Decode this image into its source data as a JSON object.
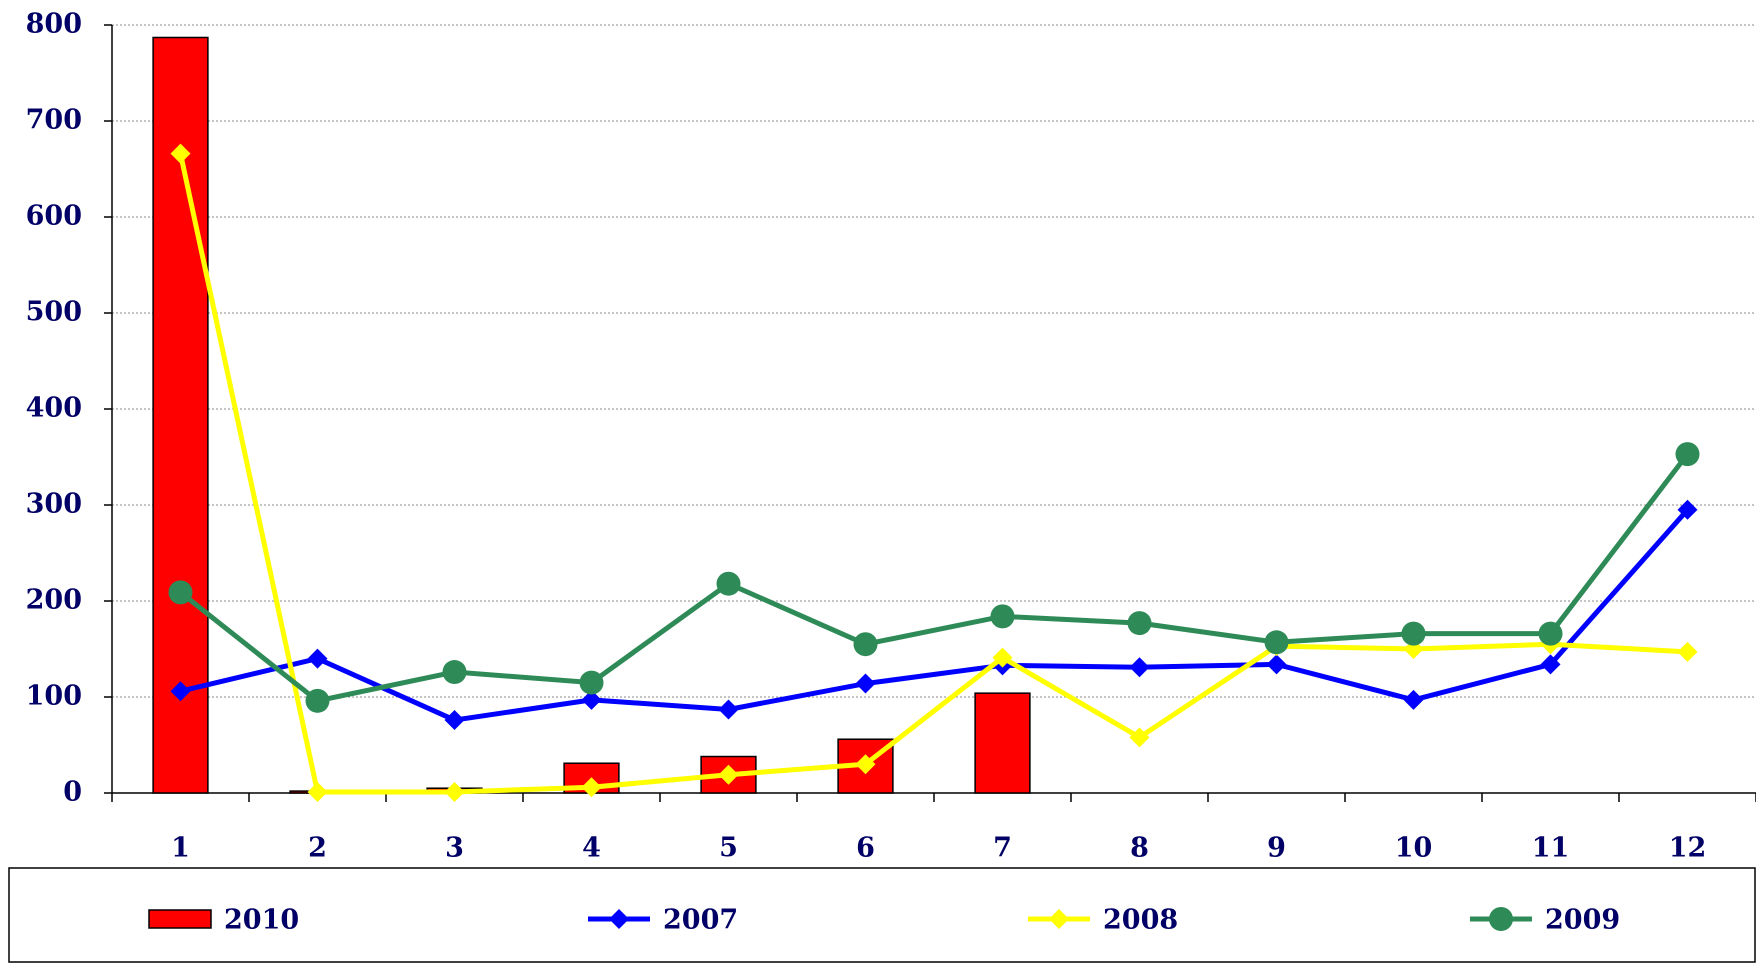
{
  "chart_data": {
    "type": "bar",
    "categories": [
      "1",
      "2",
      "3",
      "4",
      "5",
      "6",
      "7",
      "8",
      "9",
      "10",
      "11",
      "12"
    ],
    "series": [
      {
        "name": "2010",
        "type": "bar",
        "color": "#ff0000",
        "values": [
          787,
          2,
          5,
          31,
          38,
          56,
          104,
          null,
          null,
          null,
          null,
          null
        ]
      },
      {
        "name": "2007",
        "type": "line",
        "marker": "diamond",
        "color": "#0000ff",
        "values": [
          106,
          140,
          76,
          97,
          87,
          114,
          133,
          131,
          134,
          97,
          134,
          295
        ]
      },
      {
        "name": "2008",
        "type": "line",
        "marker": "diamond",
        "color": "#ffff00",
        "values": [
          666,
          1,
          1,
          6,
          19,
          30,
          141,
          58,
          153,
          150,
          155,
          147
        ]
      },
      {
        "name": "2009",
        "type": "line",
        "marker": "circle",
        "color": "#2e8b57",
        "values": [
          209,
          96,
          126,
          115,
          218,
          155,
          184,
          177,
          157,
          166,
          166,
          353
        ]
      }
    ],
    "ylim": [
      0,
      800
    ],
    "yticks": [
      0,
      100,
      200,
      300,
      400,
      500,
      600,
      700,
      800
    ],
    "grid": true,
    "legend": "bottom"
  }
}
